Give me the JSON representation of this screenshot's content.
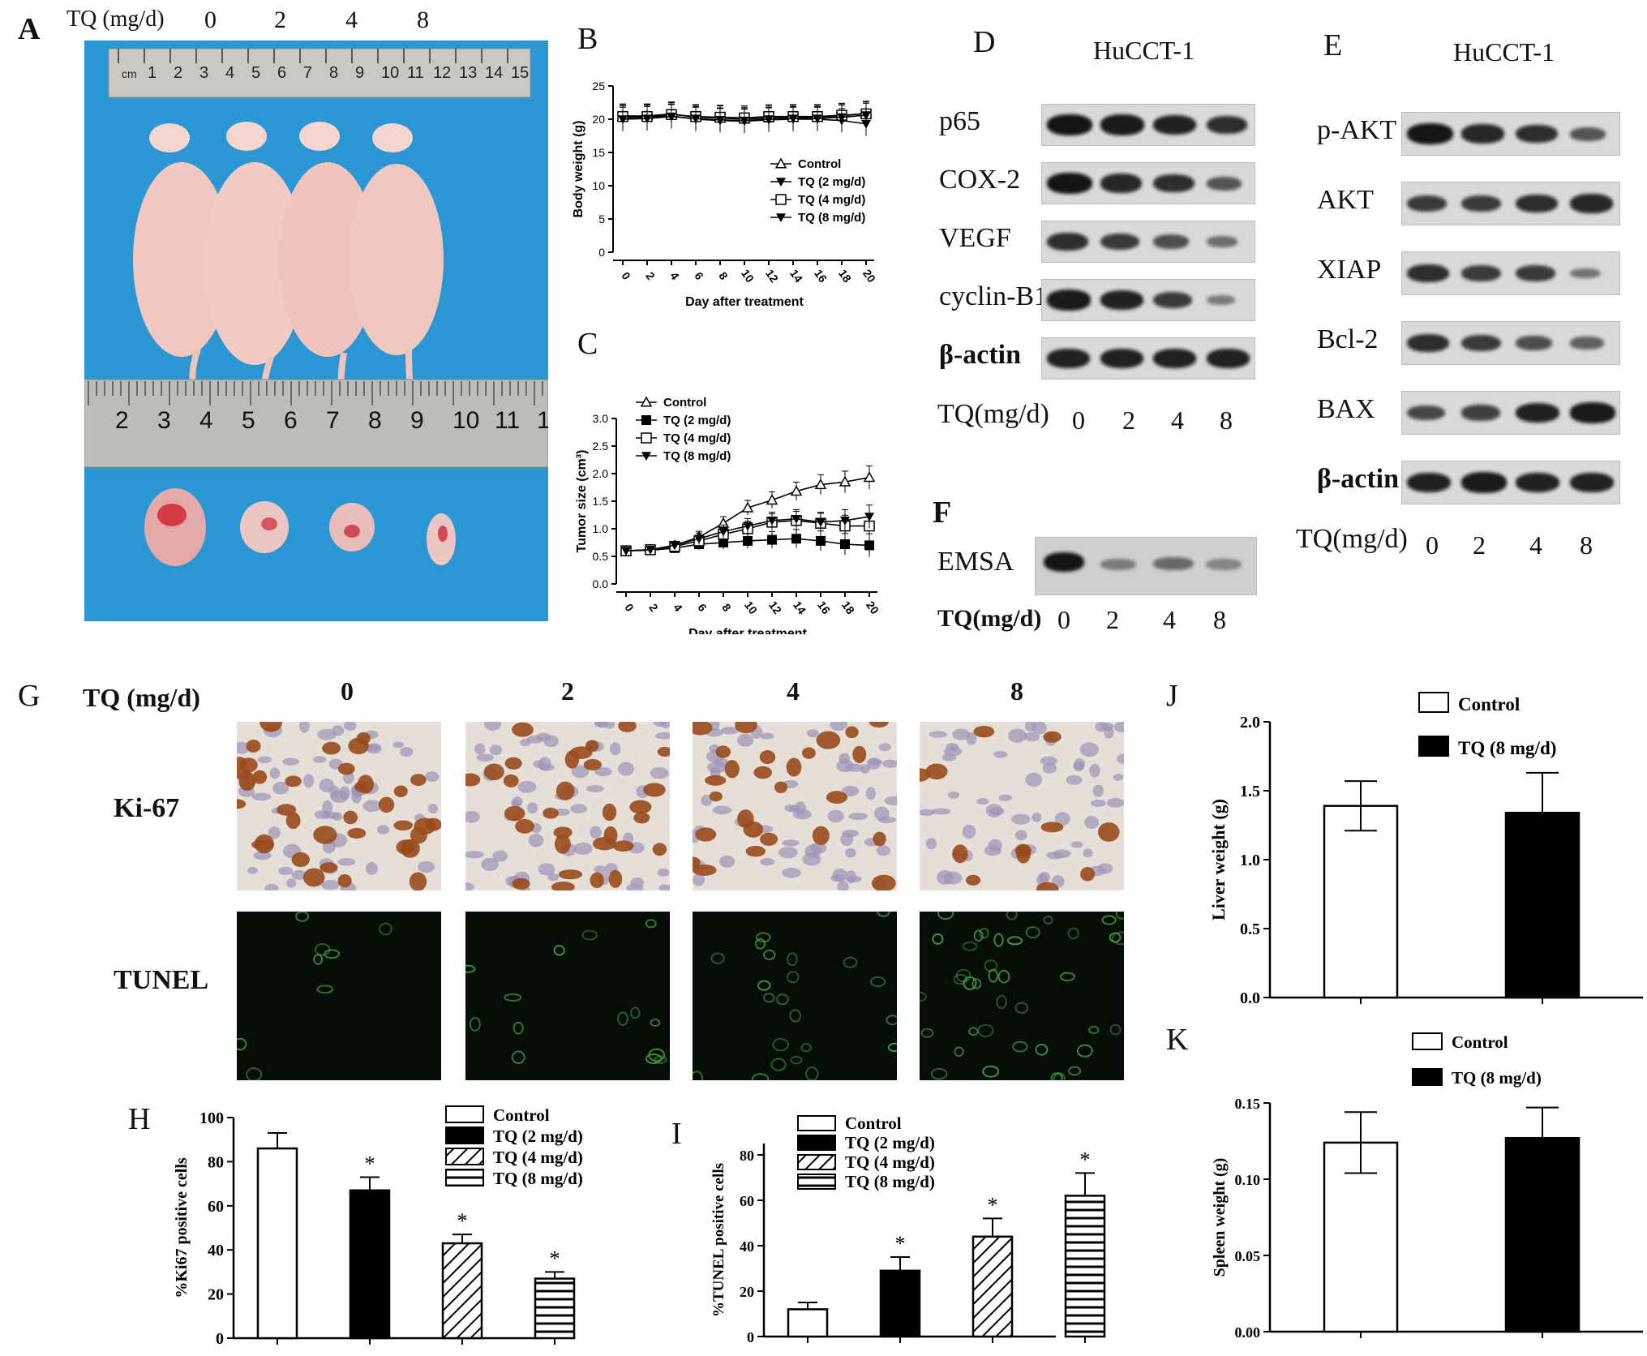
{
  "panels": {
    "A": {
      "label": "A",
      "dose_header": "TQ (mg/d)",
      "doses": [
        "0",
        "2",
        "4",
        "8"
      ],
      "ruler_top": [
        "cm",
        "1",
        "2",
        "3",
        "4",
        "5",
        "6",
        "7",
        "8",
        "9",
        "10",
        "11",
        "12",
        "13",
        "14",
        "15"
      ],
      "ruler_bottom": [
        "2",
        "3",
        "4",
        "5",
        "6",
        "7",
        "8",
        "9",
        "10",
        "11",
        "1"
      ]
    },
    "B": {
      "label": "B"
    },
    "C": {
      "label": "C"
    },
    "D": {
      "label": "D",
      "cell_line": "HuCCT-1",
      "rows": [
        "p65",
        "COX-2",
        "VEGF",
        "cyclin-B1",
        "β-actin"
      ],
      "axis_label": "TQ(mg/d)",
      "lanes": [
        "0",
        "2",
        "4",
        "8"
      ]
    },
    "E": {
      "label": "E",
      "cell_line": "HuCCT-1",
      "rows": [
        "p-AKT",
        "AKT",
        "XIAP",
        "Bcl-2",
        "BAX",
        "β-actin"
      ],
      "axis_label": "TQ(mg/d)",
      "lanes": [
        "0",
        "2",
        "4",
        "8"
      ]
    },
    "F": {
      "label": "F",
      "row": "EMSA",
      "axis_label": "TQ(mg/d)",
      "lanes": [
        "0",
        "2",
        "4",
        "8"
      ]
    },
    "G": {
      "label": "G",
      "dose_header": "TQ (mg/d)",
      "doses": [
        "0",
        "2",
        "4",
        "8"
      ],
      "rows": [
        "Ki-67",
        "TUNEL"
      ]
    },
    "H": {
      "label": "H"
    },
    "I": {
      "label": "I"
    },
    "J": {
      "label": "J"
    },
    "K": {
      "label": "K"
    }
  },
  "chart_data": [
    {
      "id": "B",
      "type": "line",
      "xlabel": "Day after treatment",
      "ylabel": "Body weight (g)",
      "ylim": [
        0,
        25
      ],
      "yticks": [
        "0",
        "5",
        "10",
        "15",
        "20",
        "25"
      ],
      "x": [
        0,
        2,
        4,
        6,
        8,
        10,
        12,
        14,
        16,
        18,
        20
      ],
      "xticks": [
        "0",
        "2",
        "4",
        "6",
        "8",
        "10",
        "12",
        "14",
        "16",
        "18",
        "20"
      ],
      "series": [
        {
          "name": "Control",
          "marker": "triangle-open",
          "values": [
            20.5,
            20.5,
            20.8,
            20.3,
            20.2,
            20.0,
            20.2,
            20.3,
            20.3,
            20.5,
            20.9
          ]
        },
        {
          "name": "TQ (2 mg/d)",
          "marker": "triangle-down-filled",
          "values": [
            20.2,
            20.3,
            20.5,
            20.0,
            19.8,
            19.7,
            19.9,
            20.0,
            20.0,
            19.8,
            19.3
          ]
        },
        {
          "name": "TQ (4 mg/d)",
          "marker": "square-open",
          "values": [
            20.4,
            20.4,
            20.7,
            20.4,
            20.3,
            20.2,
            20.4,
            20.4,
            20.4,
            20.6,
            20.8
          ]
        },
        {
          "name": "TQ (8 mg/d)",
          "marker": "triangle-down-filled",
          "values": [
            20.0,
            20.1,
            20.4,
            20.1,
            19.9,
            19.8,
            20.0,
            20.1,
            20.1,
            20.3,
            20.6
          ]
        }
      ],
      "legend": "center-right"
    },
    {
      "id": "C",
      "type": "line",
      "xlabel": "Day after treatment",
      "ylabel": "Tumor size (cm³)",
      "ylim": [
        0,
        3.0
      ],
      "yticks": [
        "0.0",
        "0.5",
        "1.0",
        "1.5",
        "2.0",
        "2.5",
        "3.0"
      ],
      "x": [
        0,
        2,
        4,
        6,
        8,
        10,
        12,
        14,
        16,
        18,
        20
      ],
      "xticks": [
        "0",
        "2",
        "4",
        "6",
        "8",
        "10",
        "12",
        "14",
        "16",
        "18",
        "20"
      ],
      "series": [
        {
          "name": "Control",
          "marker": "triangle-open",
          "values": [
            0.6,
            0.62,
            0.7,
            0.85,
            1.1,
            1.38,
            1.52,
            1.68,
            1.8,
            1.85,
            1.93
          ]
        },
        {
          "name": "TQ (2 mg/d)",
          "marker": "square-filled",
          "values": [
            0.6,
            0.61,
            0.65,
            0.72,
            0.75,
            0.78,
            0.8,
            0.82,
            0.78,
            0.72,
            0.7
          ]
        },
        {
          "name": "TQ (4 mg/d)",
          "marker": "square-open",
          "values": [
            0.6,
            0.62,
            0.68,
            0.78,
            0.9,
            1.0,
            1.12,
            1.15,
            1.1,
            1.05,
            1.05
          ]
        },
        {
          "name": "TQ (8 mg/d)",
          "marker": "triangle-down-filled",
          "values": [
            0.6,
            0.62,
            0.7,
            0.82,
            0.95,
            1.05,
            1.15,
            1.18,
            1.12,
            1.15,
            1.22
          ]
        }
      ],
      "legend": "top-left"
    },
    {
      "id": "H",
      "type": "bar",
      "ylabel": "%Ki67 positive cells",
      "ylim": [
        0,
        100
      ],
      "yticks": [
        "0",
        "20",
        "40",
        "60",
        "80",
        "100"
      ],
      "categories": [
        "Control",
        "TQ (2 mg/d)",
        "TQ (4 mg/d)",
        "TQ (8 mg/d)"
      ],
      "values": [
        86,
        67,
        43,
        27
      ],
      "errors": [
        7,
        6,
        4,
        3
      ],
      "significance": [
        "",
        "*",
        "*",
        "*"
      ],
      "fills": [
        "white",
        "black",
        "diagonal",
        "horizontal"
      ],
      "legend": "top-right"
    },
    {
      "id": "I",
      "type": "bar",
      "ylabel": "%TUNEL positive cells",
      "ylim": [
        0,
        85
      ],
      "yticks": [
        "0",
        "20",
        "40",
        "60",
        "80"
      ],
      "categories": [
        "Control",
        "TQ (2 mg/d)",
        "TQ (4 mg/d)",
        "TQ (8 mg/d)"
      ],
      "values": [
        12,
        29,
        44,
        62
      ],
      "errors": [
        3,
        6,
        8,
        10
      ],
      "significance": [
        "",
        "*",
        "*",
        "*"
      ],
      "fills": [
        "white",
        "black",
        "diagonal",
        "horizontal"
      ],
      "legend": "top-left"
    },
    {
      "id": "J",
      "type": "bar",
      "ylabel": "Liver weight (g)",
      "ylim": [
        0,
        2.0
      ],
      "yticks": [
        "0.0",
        "0.5",
        "1.0",
        "1.5",
        "2.0"
      ],
      "categories": [
        "Control",
        "TQ (8 mg/d)"
      ],
      "values": [
        1.39,
        1.34
      ],
      "errors": [
        0.18,
        0.29
      ],
      "fills": [
        "white",
        "black"
      ],
      "legend": "top-right"
    },
    {
      "id": "K",
      "type": "bar",
      "ylabel": "Spleen weight (g)",
      "ylim": [
        0,
        0.15
      ],
      "yticks": [
        "0.00",
        "0.05",
        "0.10",
        "0.15"
      ],
      "categories": [
        "Control",
        "TQ (8 mg/d)"
      ],
      "values": [
        0.124,
        0.127
      ],
      "errors": [
        0.02,
        0.02
      ],
      "fills": [
        "white",
        "black"
      ],
      "legend": "top-right"
    }
  ]
}
